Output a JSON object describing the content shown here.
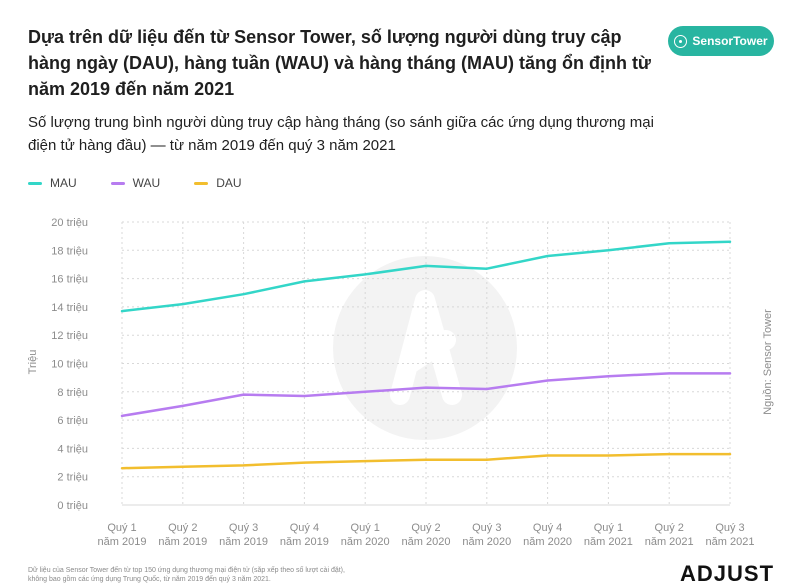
{
  "header": {
    "title": "Dựa trên dữ liệu đến từ Sensor Tower, số lượng người dùng truy cập hàng ngày (DAU), hàng tuần (WAU) và hàng tháng (MAU) tăng ổn định từ năm 2019 đến năm 2021",
    "subtitle": "Số lượng trung bình người dùng truy cập hàng tháng (so sánh giữa các ứng dụng thương mại điện tử hàng đầu) — từ năm 2019 đến quý 3 năm 2021",
    "badge_label": "SensorTower"
  },
  "colors": {
    "MAU": "#33d6c8",
    "WAU": "#b77cf0",
    "DAU": "#f2be2e",
    "grid": "#d8d8d8",
    "axis_text": "#8c8c8c",
    "badge": "#28b5a1"
  },
  "chart_data": {
    "type": "line",
    "title": "Số lượng trung bình người dùng truy cập hàng tháng",
    "ylabel": "Triệu",
    "xlabel": "",
    "source_label": "Nguồn: Sensor Tower",
    "ylim": [
      0,
      20
    ],
    "yticks": [
      {
        "value": 0,
        "label": "0 triệu"
      },
      {
        "value": 2,
        "label": "2 triệu"
      },
      {
        "value": 4,
        "label": "4 triệu"
      },
      {
        "value": 6,
        "label": "6 triệu"
      },
      {
        "value": 8,
        "label": "8 triệu"
      },
      {
        "value": 10,
        "label": "10 triệu"
      },
      {
        "value": 12,
        "label": "12 triệu"
      },
      {
        "value": 14,
        "label": "14 triệu"
      },
      {
        "value": 16,
        "label": "16 triệu"
      },
      {
        "value": 18,
        "label": "18 triệu"
      },
      {
        "value": 20,
        "label": "20 triệu"
      }
    ],
    "categories": [
      {
        "q": "Quý 1",
        "y": "năm 2019"
      },
      {
        "q": "Quý 2",
        "y": "năm 2019"
      },
      {
        "q": "Quý 3",
        "y": "năm 2019"
      },
      {
        "q": "Quý 4",
        "y": "năm 2019"
      },
      {
        "q": "Quý 1",
        "y": "năm 2020"
      },
      {
        "q": "Quý 2",
        "y": "năm 2020"
      },
      {
        "q": "Quý 3",
        "y": "năm 2020"
      },
      {
        "q": "Quý 4",
        "y": "năm 2020"
      },
      {
        "q": "Quý 1",
        "y": "năm 2021"
      },
      {
        "q": "Quý 2",
        "y": "năm 2021"
      },
      {
        "q": "Quý 3",
        "y": "năm 2021"
      }
    ],
    "series": [
      {
        "name": "MAU",
        "values": [
          13.7,
          14.2,
          14.9,
          15.8,
          16.3,
          16.9,
          16.7,
          17.6,
          18.0,
          18.5,
          18.6
        ]
      },
      {
        "name": "WAU",
        "values": [
          6.3,
          7.0,
          7.8,
          7.7,
          8.0,
          8.3,
          8.2,
          8.8,
          9.1,
          9.3,
          9.3
        ]
      },
      {
        "name": "DAU",
        "values": [
          2.6,
          2.7,
          2.8,
          3.0,
          3.1,
          3.2,
          3.2,
          3.5,
          3.5,
          3.6,
          3.6
        ]
      }
    ],
    "legend": [
      "MAU",
      "WAU",
      "DAU"
    ],
    "grid": true
  },
  "footer": {
    "note_line1": "Dữ liệu của Sensor Tower đến từ top 150 ứng dụng thương mại điện tử (sắp xếp theo số lượt cài đặt),",
    "note_line2": "không bao gồm các ứng dụng Trung Quốc, từ năm 2019 đến quý 3 năm 2021.",
    "brand": "ADJUST"
  }
}
